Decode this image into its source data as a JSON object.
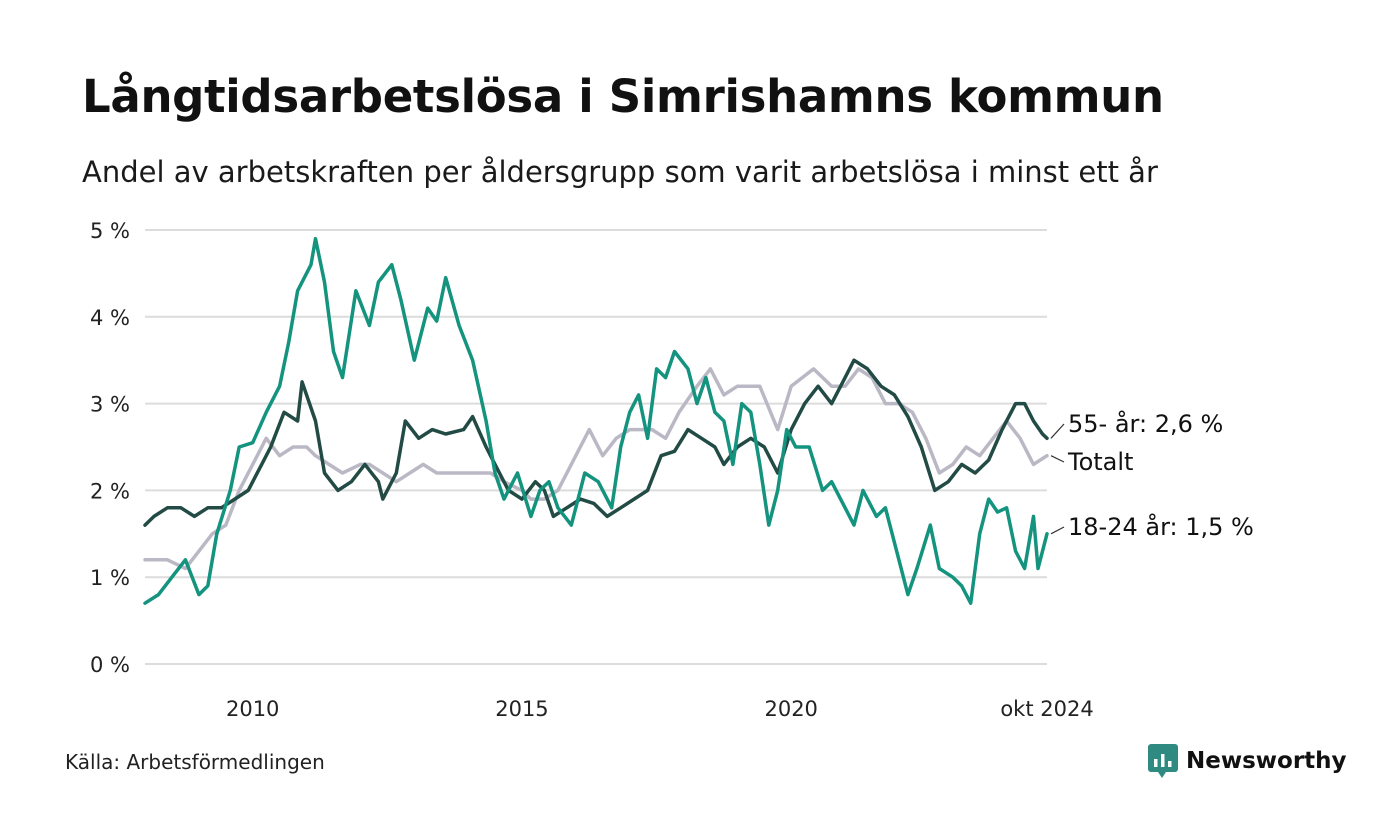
{
  "title": "Långtidsarbetslösa i Simrishamns kommun",
  "subtitle": "Andel av arbetskraften per åldersgrupp som varit arbetslösa i minst ett år",
  "source": "Källa: Arbetsförmedlingen",
  "brand": {
    "name": "Newsworthy",
    "icon": "newsworthy-logo-icon",
    "color": "#2f8a82"
  },
  "chart_data": {
    "type": "line",
    "x_range": [
      "2008-01",
      "2024-10"
    ],
    "ylim": [
      0,
      5
    ],
    "yticks": [
      0,
      1,
      2,
      3,
      4,
      5
    ],
    "ytick_labels": [
      "0 %",
      "1 %",
      "2 %",
      "3 %",
      "4 %",
      "5 %"
    ],
    "xticks": [
      {
        "x": "2010-01",
        "label": "2010"
      },
      {
        "x": "2015-01",
        "label": "2015"
      },
      {
        "x": "2020-01",
        "label": "2020"
      },
      {
        "x": "2024-10",
        "label": "okt 2024"
      }
    ],
    "grid": true,
    "legend": "direct labels at line ends",
    "series": [
      {
        "name": "Totalt",
        "end_label": "Totalt",
        "color": "#bbb8c5",
        "points": [
          [
            "2008-01",
            1.2
          ],
          [
            "2008-06",
            1.2
          ],
          [
            "2008-10",
            1.1
          ],
          [
            "2009-01",
            1.3
          ],
          [
            "2009-04",
            1.5
          ],
          [
            "2009-07",
            1.6
          ],
          [
            "2009-10",
            2.0
          ],
          [
            "2010-01",
            2.3
          ],
          [
            "2010-04",
            2.6
          ],
          [
            "2010-07",
            2.4
          ],
          [
            "2010-10",
            2.5
          ],
          [
            "2011-01",
            2.5
          ],
          [
            "2011-03",
            2.4
          ],
          [
            "2011-06",
            2.3
          ],
          [
            "2011-09",
            2.2
          ],
          [
            "2012-01",
            2.3
          ],
          [
            "2012-03",
            2.3
          ],
          [
            "2012-06",
            2.2
          ],
          [
            "2012-09",
            2.1
          ],
          [
            "2012-12",
            2.2
          ],
          [
            "2013-03",
            2.3
          ],
          [
            "2013-06",
            2.2
          ],
          [
            "2014-01",
            2.2
          ],
          [
            "2014-06",
            2.2
          ],
          [
            "2014-09",
            2.1
          ],
          [
            "2015-01",
            2.0
          ],
          [
            "2015-03",
            1.9
          ],
          [
            "2015-06",
            1.9
          ],
          [
            "2015-09",
            2.0
          ],
          [
            "2016-01",
            2.4
          ],
          [
            "2016-04",
            2.7
          ],
          [
            "2016-07",
            2.4
          ],
          [
            "2016-10",
            2.6
          ],
          [
            "2017-01",
            2.7
          ],
          [
            "2017-06",
            2.7
          ],
          [
            "2017-09",
            2.6
          ],
          [
            "2017-12",
            2.9
          ],
          [
            "2018-04",
            3.2
          ],
          [
            "2018-07",
            3.4
          ],
          [
            "2018-10",
            3.1
          ],
          [
            "2019-01",
            3.2
          ],
          [
            "2019-06",
            3.2
          ],
          [
            "2019-10",
            2.7
          ],
          [
            "2020-01",
            3.2
          ],
          [
            "2020-06",
            3.4
          ],
          [
            "2020-10",
            3.2
          ],
          [
            "2021-01",
            3.2
          ],
          [
            "2021-04",
            3.4
          ],
          [
            "2021-07",
            3.3
          ],
          [
            "2021-10",
            3.0
          ],
          [
            "2022-01",
            3.0
          ],
          [
            "2022-04",
            2.9
          ],
          [
            "2022-07",
            2.6
          ],
          [
            "2022-10",
            2.2
          ],
          [
            "2023-01",
            2.3
          ],
          [
            "2023-04",
            2.5
          ],
          [
            "2023-07",
            2.4
          ],
          [
            "2023-10",
            2.6
          ],
          [
            "2024-01",
            2.8
          ],
          [
            "2024-04",
            2.6
          ],
          [
            "2024-07",
            2.3
          ],
          [
            "2024-10",
            2.4
          ]
        ]
      },
      {
        "name": "55- år",
        "end_label": "55- år: 2,6 %",
        "color": "#224b45",
        "points": [
          [
            "2008-01",
            1.6
          ],
          [
            "2008-03",
            1.7
          ],
          [
            "2008-06",
            1.8
          ],
          [
            "2008-09",
            1.8
          ],
          [
            "2008-12",
            1.7
          ],
          [
            "2009-03",
            1.8
          ],
          [
            "2009-06",
            1.8
          ],
          [
            "2009-09",
            1.9
          ],
          [
            "2009-12",
            2.0
          ],
          [
            "2010-03",
            2.3
          ],
          [
            "2010-05",
            2.5
          ],
          [
            "2010-08",
            2.9
          ],
          [
            "2010-11",
            2.8
          ],
          [
            "2010-12",
            3.25
          ],
          [
            "2011-03",
            2.8
          ],
          [
            "2011-05",
            2.2
          ],
          [
            "2011-08",
            2.0
          ],
          [
            "2011-11",
            2.1
          ],
          [
            "2012-02",
            2.3
          ],
          [
            "2012-05",
            2.1
          ],
          [
            "2012-06",
            1.9
          ],
          [
            "2012-09",
            2.2
          ],
          [
            "2012-11",
            2.8
          ],
          [
            "2013-02",
            2.6
          ],
          [
            "2013-05",
            2.7
          ],
          [
            "2013-08",
            2.65
          ],
          [
            "2013-12",
            2.7
          ],
          [
            "2014-02",
            2.85
          ],
          [
            "2014-05",
            2.5
          ],
          [
            "2014-07",
            2.3
          ],
          [
            "2014-10",
            2.0
          ],
          [
            "2015-01",
            1.9
          ],
          [
            "2015-04",
            2.1
          ],
          [
            "2015-06",
            2.0
          ],
          [
            "2015-08",
            1.7
          ],
          [
            "2015-11",
            1.8
          ],
          [
            "2016-02",
            1.9
          ],
          [
            "2016-05",
            1.85
          ],
          [
            "2016-08",
            1.7
          ],
          [
            "2016-11",
            1.8
          ],
          [
            "2017-02",
            1.9
          ],
          [
            "2017-05",
            2.0
          ],
          [
            "2017-08",
            2.4
          ],
          [
            "2017-11",
            2.45
          ],
          [
            "2018-02",
            2.7
          ],
          [
            "2018-05",
            2.6
          ],
          [
            "2018-08",
            2.5
          ],
          [
            "2018-10",
            2.3
          ],
          [
            "2019-01",
            2.5
          ],
          [
            "2019-04",
            2.6
          ],
          [
            "2019-07",
            2.5
          ],
          [
            "2019-10",
            2.2
          ],
          [
            "2020-01",
            2.7
          ],
          [
            "2020-04",
            3.0
          ],
          [
            "2020-07",
            3.2
          ],
          [
            "2020-10",
            3.0
          ],
          [
            "2021-01",
            3.3
          ],
          [
            "2021-03",
            3.5
          ],
          [
            "2021-06",
            3.4
          ],
          [
            "2021-09",
            3.2
          ],
          [
            "2021-12",
            3.1
          ],
          [
            "2022-03",
            2.85
          ],
          [
            "2022-06",
            2.5
          ],
          [
            "2022-09",
            2.0
          ],
          [
            "2022-12",
            2.1
          ],
          [
            "2023-03",
            2.3
          ],
          [
            "2023-06",
            2.2
          ],
          [
            "2023-09",
            2.35
          ],
          [
            "2023-12",
            2.7
          ],
          [
            "2024-03",
            3.0
          ],
          [
            "2024-05",
            3.0
          ],
          [
            "2024-07",
            2.8
          ],
          [
            "2024-09",
            2.65
          ],
          [
            "2024-10",
            2.6
          ]
        ]
      },
      {
        "name": "18-24 år",
        "end_label": "18-24 år: 1,5 %",
        "color": "#14937f",
        "points": [
          [
            "2008-01",
            0.7
          ],
          [
            "2008-04",
            0.8
          ],
          [
            "2008-07",
            1.0
          ],
          [
            "2008-10",
            1.2
          ],
          [
            "2009-01",
            0.8
          ],
          [
            "2009-03",
            0.9
          ],
          [
            "2009-05",
            1.5
          ],
          [
            "2009-08",
            2.0
          ],
          [
            "2009-10",
            2.5
          ],
          [
            "2010-01",
            2.55
          ],
          [
            "2010-04",
            2.9
          ],
          [
            "2010-07",
            3.2
          ],
          [
            "2010-09",
            3.7
          ],
          [
            "2010-11",
            4.3
          ],
          [
            "2011-02",
            4.6
          ],
          [
            "2011-03",
            4.9
          ],
          [
            "2011-05",
            4.4
          ],
          [
            "2011-07",
            3.6
          ],
          [
            "2011-09",
            3.3
          ],
          [
            "2011-12",
            4.3
          ],
          [
            "2012-03",
            3.9
          ],
          [
            "2012-05",
            4.4
          ],
          [
            "2012-08",
            4.6
          ],
          [
            "2012-10",
            4.2
          ],
          [
            "2013-01",
            3.5
          ],
          [
            "2013-04",
            4.1
          ],
          [
            "2013-06",
            3.95
          ],
          [
            "2013-08",
            4.45
          ],
          [
            "2013-11",
            3.9
          ],
          [
            "2014-02",
            3.5
          ],
          [
            "2014-05",
            2.8
          ],
          [
            "2014-07",
            2.2
          ],
          [
            "2014-09",
            1.9
          ],
          [
            "2014-12",
            2.2
          ],
          [
            "2015-03",
            1.7
          ],
          [
            "2015-05",
            2.0
          ],
          [
            "2015-07",
            2.1
          ],
          [
            "2015-09",
            1.8
          ],
          [
            "2015-12",
            1.6
          ],
          [
            "2016-03",
            2.2
          ],
          [
            "2016-06",
            2.1
          ],
          [
            "2016-09",
            1.8
          ],
          [
            "2016-11",
            2.5
          ],
          [
            "2017-01",
            2.9
          ],
          [
            "2017-03",
            3.1
          ],
          [
            "2017-05",
            2.6
          ],
          [
            "2017-07",
            3.4
          ],
          [
            "2017-09",
            3.3
          ],
          [
            "2017-11",
            3.6
          ],
          [
            "2018-02",
            3.4
          ],
          [
            "2018-04",
            3.0
          ],
          [
            "2018-06",
            3.3
          ],
          [
            "2018-08",
            2.9
          ],
          [
            "2018-10",
            2.8
          ],
          [
            "2018-12",
            2.3
          ],
          [
            "2019-02",
            3.0
          ],
          [
            "2019-04",
            2.9
          ],
          [
            "2019-06",
            2.3
          ],
          [
            "2019-08",
            1.6
          ],
          [
            "2019-10",
            2.0
          ],
          [
            "2019-12",
            2.7
          ],
          [
            "2020-02",
            2.5
          ],
          [
            "2020-05",
            2.5
          ],
          [
            "2020-08",
            2.0
          ],
          [
            "2020-10",
            2.1
          ],
          [
            "2021-01",
            1.8
          ],
          [
            "2021-03",
            1.6
          ],
          [
            "2021-05",
            2.0
          ],
          [
            "2021-08",
            1.7
          ],
          [
            "2021-10",
            1.8
          ],
          [
            "2022-01",
            1.2
          ],
          [
            "2022-03",
            0.8
          ],
          [
            "2022-05",
            1.1
          ],
          [
            "2022-08",
            1.6
          ],
          [
            "2022-10",
            1.1
          ],
          [
            "2023-01",
            1.0
          ],
          [
            "2023-03",
            0.9
          ],
          [
            "2023-05",
            0.7
          ],
          [
            "2023-07",
            1.5
          ],
          [
            "2023-09",
            1.9
          ],
          [
            "2023-11",
            1.75
          ],
          [
            "2024-01",
            1.8
          ],
          [
            "2024-03",
            1.3
          ],
          [
            "2024-05",
            1.1
          ],
          [
            "2024-07",
            1.7
          ],
          [
            "2024-08",
            1.1
          ],
          [
            "2024-10",
            1.5
          ]
        ]
      }
    ]
  }
}
